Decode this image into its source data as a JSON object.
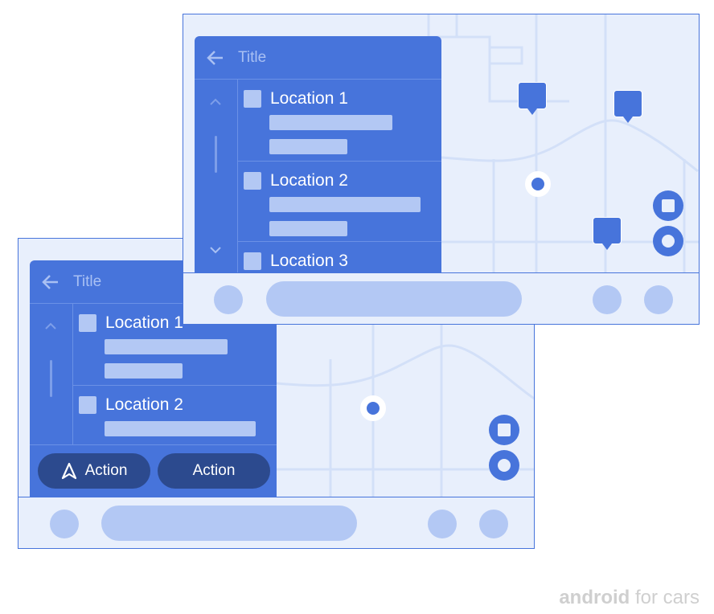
{
  "colors": {
    "accent": "#4774db",
    "surface": "#e8effc",
    "placeholder": "#b3c8f4",
    "action_button": "#2c4a8e"
  },
  "back_window": {
    "title": "Title",
    "items": [
      {
        "label": "Location 1"
      },
      {
        "label": "Location 2"
      }
    ],
    "actions": [
      {
        "label": "Action",
        "icon": "navigation-icon"
      },
      {
        "label": "Action"
      }
    ]
  },
  "front_window": {
    "title": "Title",
    "items": [
      {
        "label": "Location 1"
      },
      {
        "label": "Location 2"
      },
      {
        "label": "Location 3"
      }
    ]
  },
  "brand": {
    "bold": "android",
    "rest": " for cars"
  }
}
